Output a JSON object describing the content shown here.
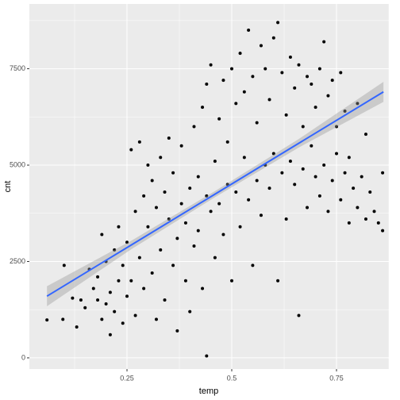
{
  "chart_data": {
    "type": "scatter",
    "xlabel": "temp",
    "ylabel": "cnt",
    "color": "#000000",
    "xlim": [
      0.017,
      0.875
    ],
    "ylim": [
      -290,
      9180
    ],
    "xticks": [
      0.25,
      0.5,
      0.75
    ],
    "yticks": [
      0,
      2500,
      5000,
      7500
    ],
    "minor_xticks": [
      0.125,
      0.375,
      0.625,
      0.875
    ],
    "minor_yticks": [
      1250,
      3750,
      6250,
      8750
    ],
    "grid": true,
    "x": [
      0.059,
      0.097,
      0.1,
      0.12,
      0.13,
      0.14,
      0.15,
      0.16,
      0.17,
      0.18,
      0.18,
      0.19,
      0.19,
      0.2,
      0.2,
      0.21,
      0.21,
      0.22,
      0.22,
      0.23,
      0.23,
      0.24,
      0.24,
      0.25,
      0.25,
      0.26,
      0.26,
      0.27,
      0.27,
      0.28,
      0.28,
      0.29,
      0.29,
      0.3,
      0.3,
      0.31,
      0.31,
      0.32,
      0.32,
      0.33,
      0.33,
      0.34,
      0.34,
      0.35,
      0.35,
      0.36,
      0.36,
      0.37,
      0.37,
      0.38,
      0.38,
      0.39,
      0.39,
      0.4,
      0.4,
      0.41,
      0.41,
      0.42,
      0.42,
      0.43,
      0.43,
      0.44,
      0.44,
      0.44,
      0.45,
      0.45,
      0.46,
      0.46,
      0.47,
      0.47,
      0.48,
      0.48,
      0.49,
      0.49,
      0.5,
      0.5,
      0.51,
      0.51,
      0.52,
      0.52,
      0.53,
      0.53,
      0.54,
      0.54,
      0.55,
      0.55,
      0.56,
      0.56,
      0.57,
      0.57,
      0.58,
      0.58,
      0.59,
      0.59,
      0.6,
      0.6,
      0.61,
      0.61,
      0.62,
      0.62,
      0.63,
      0.63,
      0.64,
      0.64,
      0.65,
      0.65,
      0.66,
      0.66,
      0.67,
      0.67,
      0.68,
      0.68,
      0.69,
      0.69,
      0.7,
      0.7,
      0.71,
      0.71,
      0.72,
      0.72,
      0.73,
      0.73,
      0.74,
      0.74,
      0.75,
      0.75,
      0.76,
      0.76,
      0.77,
      0.77,
      0.78,
      0.78,
      0.79,
      0.8,
      0.8,
      0.81,
      0.82,
      0.82,
      0.83,
      0.84,
      0.85,
      0.86,
      0.86
    ],
    "values": [
      985,
      1000,
      2400,
      1550,
      800,
      1500,
      1300,
      2300,
      1800,
      1500,
      2100,
      1000,
      3200,
      1400,
      2500,
      600,
      1700,
      2800,
      1200,
      3400,
      2000,
      900,
      2400,
      1600,
      3000,
      5400,
      2000,
      1100,
      3800,
      5600,
      2600,
      4200,
      1800,
      3400,
      5000,
      2200,
      4600,
      1000,
      3900,
      5200,
      2800,
      4300,
      1500,
      3600,
      5700,
      2400,
      4800,
      3100,
      700,
      5500,
      4000,
      2000,
      3500,
      4400,
      1200,
      6000,
      2900,
      4700,
      3300,
      6500,
      1800,
      7100,
      50,
      4200,
      3800,
      7600,
      5100,
      2600,
      6200,
      4000,
      7200,
      3200,
      5600,
      4500,
      7500,
      2000,
      6600,
      4300,
      7900,
      3400,
      5200,
      6900,
      8500,
      4100,
      7300,
      2400,
      6100,
      4600,
      8100,
      3700,
      7500,
      5000,
      6700,
      4400,
      8300,
      5300,
      8700,
      2000,
      7400,
      4800,
      6300,
      3600,
      7800,
      5100,
      7000,
      4500,
      7600,
      1100,
      6000,
      4900,
      7300,
      3900,
      5500,
      7100,
      4700,
      6500,
      7500,
      4200,
      8200,
      5000,
      6800,
      3800,
      7200,
      4600,
      6000,
      5300,
      7400,
      4100,
      4800,
      6400,
      5200,
      3500,
      4400,
      6600,
      3900,
      4700,
      5800,
      3600,
      4300,
      3800,
      3500,
      3300,
      4800
    ],
    "fit": {
      "color": "#3366ff",
      "x": [
        0.059,
        0.26,
        0.46,
        0.66,
        0.862
      ],
      "values": [
        1600,
        2927,
        4247,
        5567,
        6900
      ],
      "lower": [
        1340,
        2817,
        4167,
        5457,
        6640
      ],
      "upper": [
        1860,
        3037,
        4327,
        5677,
        7160
      ]
    }
  }
}
